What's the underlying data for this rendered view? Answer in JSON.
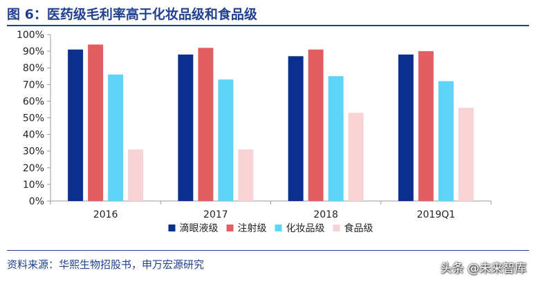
{
  "header": {
    "title": "图 6：医药级毛利率高于化妆品级和食品级"
  },
  "footer": {
    "source": "资料来源：华熙生物招股书，申万宏源研究",
    "watermark": "头条 @未来智库"
  },
  "colors": {
    "title": "#1f3f8f",
    "axis": "#9a9a9a",
    "text": "#222222"
  },
  "chart_data": {
    "type": "bar",
    "categories": [
      "2016",
      "2017",
      "2018",
      "2019Q1"
    ],
    "series": [
      {
        "name": "滴眼液级",
        "color": "#0a2f8f",
        "values": [
          91,
          88,
          87,
          88
        ]
      },
      {
        "name": "注射级",
        "color": "#e35e60",
        "values": [
          94,
          92,
          91,
          90
        ]
      },
      {
        "name": "化妆品级",
        "color": "#5fd4f8",
        "values": [
          76,
          73,
          75,
          72
        ]
      },
      {
        "name": "食品级",
        "color": "#f8d3d5",
        "values": [
          31,
          31,
          53,
          56
        ]
      }
    ],
    "y_ticks": [
      "0%",
      "10%",
      "20%",
      "30%",
      "40%",
      "50%",
      "60%",
      "70%",
      "80%",
      "90%",
      "100%"
    ],
    "ylim": [
      0,
      100
    ],
    "grid": false,
    "legend_position": "bottom"
  }
}
